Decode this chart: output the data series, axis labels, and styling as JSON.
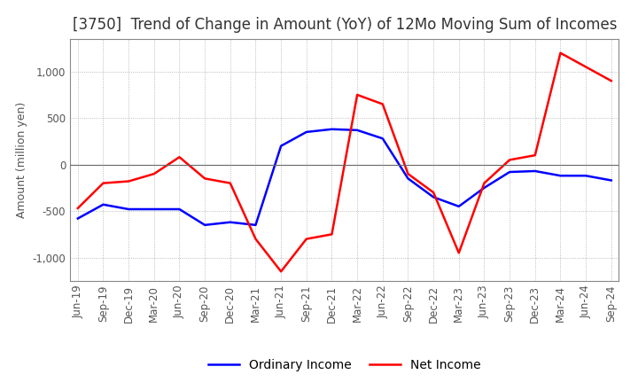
{
  "title": "[3750]  Trend of Change in Amount (YoY) of 12Mo Moving Sum of Incomes",
  "ylabel": "Amount (million yen)",
  "x_labels": [
    "Jun-19",
    "Sep-19",
    "Dec-19",
    "Mar-20",
    "Jun-20",
    "Sep-20",
    "Dec-20",
    "Mar-21",
    "Jun-21",
    "Sep-21",
    "Dec-21",
    "Mar-22",
    "Jun-22",
    "Sep-22",
    "Dec-22",
    "Mar-23",
    "Jun-23",
    "Sep-23",
    "Dec-23",
    "Mar-24",
    "Jun-24",
    "Sep-24"
  ],
  "ordinary_income": [
    -580,
    -430,
    -480,
    -480,
    -480,
    -650,
    -620,
    -650,
    200,
    350,
    380,
    370,
    280,
    -150,
    -350,
    -450,
    -250,
    -80,
    -70,
    -120,
    -120,
    -170
  ],
  "net_income": [
    -470,
    -200,
    -180,
    -100,
    80,
    -150,
    -200,
    -800,
    -1150,
    -800,
    -750,
    750,
    650,
    -100,
    -300,
    -950,
    -200,
    50,
    100,
    1200,
    1050,
    900
  ],
  "ordinary_color": "#0000ff",
  "net_color": "#ff0000",
  "ylim": [
    -1250,
    1350
  ],
  "yticks": [
    -1000,
    -500,
    0,
    500,
    1000
  ],
  "grid_color": "#aaaaaa",
  "bg_color": "#ffffff",
  "title_fontsize": 12,
  "axis_fontsize": 8.5,
  "ylabel_fontsize": 9,
  "legend_fontsize": 10,
  "tick_label_color": "#555555",
  "spine_color": "#888888"
}
